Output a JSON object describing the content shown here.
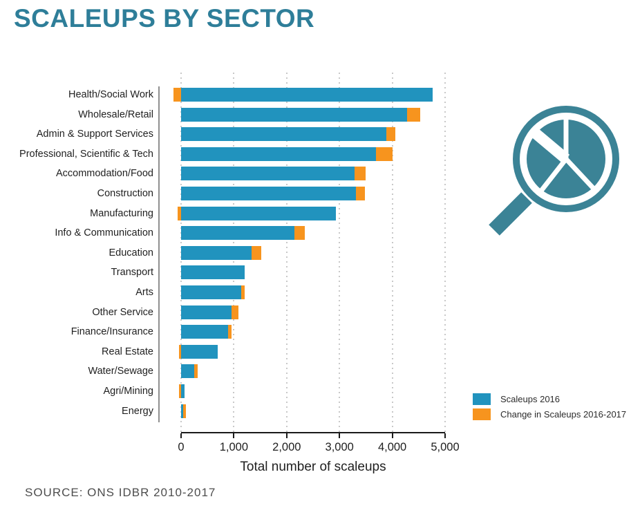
{
  "page": {
    "title": "SCALEUPS BY SECTOR",
    "source": "SOURCE: ONS IDBR 2010-2017"
  },
  "colors": {
    "title_teal": "#2E7E99",
    "icon_teal": "#3B8396",
    "bar_blue": "#2193BE",
    "bar_orange": "#F7941E",
    "axis_black": "#1a1a1a",
    "yaxis_gray": "#8f8f8f",
    "gridline_gray": "#c8c8c8",
    "source_gray": "#4d4d4d"
  },
  "legend": {
    "items": [
      {
        "label": "Scaleups 2016",
        "color": "#2193BE"
      },
      {
        "label": "Change in Scaleups 2016-2017",
        "color": "#F7941E"
      }
    ]
  },
  "chart_data": {
    "type": "bar",
    "orientation": "horizontal",
    "title": "SCALEUPS BY SECTOR",
    "xlabel": "Total number of scaleups",
    "xlim": [
      0,
      5000
    ],
    "xticks": [
      0,
      1000,
      2000,
      3000,
      4000,
      5000
    ],
    "xtick_labels": [
      "0",
      "1,000",
      "2,000",
      "3,000",
      "4,000",
      "5,000"
    ],
    "grid": "vertical-dotted",
    "legend_position": "bottom-right",
    "categories": [
      "Health/Social Work",
      "Wholesale/Retail",
      "Admin & Support Services",
      "Professional, Scientific & Tech",
      "Accommodation/Food",
      "Construction",
      "Manufacturing",
      "Info & Communication",
      "Education",
      "Transport",
      "Arts",
      "Other Service",
      "Finance/Insurance",
      "Real Estate",
      "Water/Sewage",
      "Agri/Mining",
      "Energy"
    ],
    "series": [
      {
        "name": "Scaleups 2016",
        "color": "#2193BE",
        "values": [
          4760,
          4280,
          3890,
          3690,
          3290,
          3310,
          2930,
          2150,
          1340,
          1210,
          1140,
          960,
          890,
          700,
          250,
          60,
          40
        ]
      },
      {
        "name": "Change in Scaleups 2016-2017",
        "color": "#F7941E",
        "note": "negative values drawn to the left of zero",
        "values": [
          -150,
          250,
          170,
          310,
          200,
          170,
          -60,
          190,
          180,
          0,
          60,
          130,
          70,
          -40,
          60,
          -40,
          50
        ]
      }
    ],
    "source": "SOURCE: ONS IDBR 2010-2017"
  }
}
